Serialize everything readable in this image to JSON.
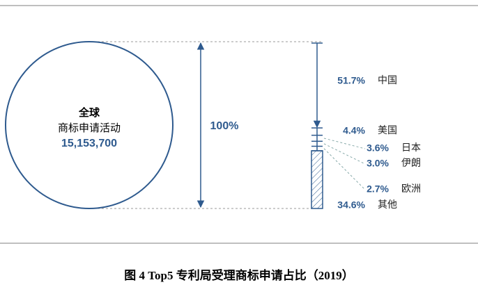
{
  "chart_data": {
    "type": "share-column",
    "title": "图 4    Top5 专利局受理商标申请占比（2019）",
    "circle": {
      "title": "全球",
      "subtitle": "商标申请活动",
      "value": 15153700,
      "value_label": "15,153,700"
    },
    "total": 100,
    "total_label": "100%",
    "categories": [
      "中国",
      "美国",
      "日本",
      "伊朗",
      "欧洲",
      "其他"
    ],
    "values": [
      51.7,
      4.4,
      3.6,
      3.0,
      2.7,
      34.6
    ],
    "value_labels": [
      "51.7%",
      "4.4%",
      "3.6%",
      "3.0%",
      "2.7%",
      "34.6%"
    ],
    "color": "#2e5a8e"
  }
}
